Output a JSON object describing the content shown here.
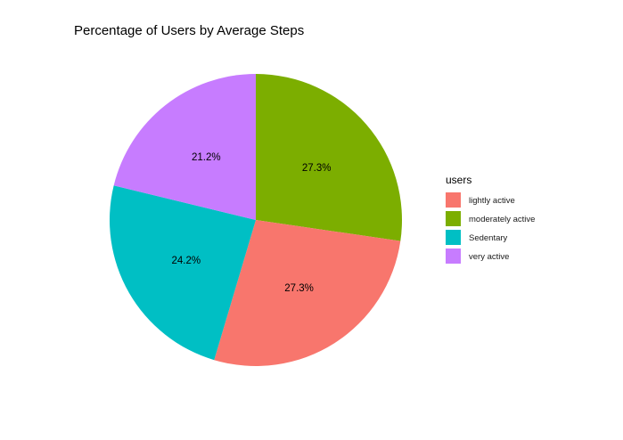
{
  "chart_data": {
    "type": "pie",
    "title": "Percentage of Users by Average Steps",
    "legend": {
      "title": "users",
      "placement": "right",
      "entries": [
        "lightly active",
        "moderately active",
        "Sedentary",
        "very active"
      ]
    },
    "slices": [
      {
        "category": "moderately active",
        "value": 27.3,
        "label": "27.3%",
        "color": "#7CAE00"
      },
      {
        "category": "lightly active",
        "value": 27.3,
        "label": "27.3%",
        "color": "#F8766D"
      },
      {
        "category": "Sedentary",
        "value": 24.2,
        "label": "24.2%",
        "color": "#00BFC4"
      },
      {
        "category": "very active",
        "value": 21.2,
        "label": "21.2%",
        "color": "#C77CFF"
      }
    ],
    "colors": {
      "lightly active": "#F8766D",
      "moderately active": "#7CAE00",
      "Sedentary": "#00BFC4",
      "very active": "#C77CFF"
    }
  }
}
